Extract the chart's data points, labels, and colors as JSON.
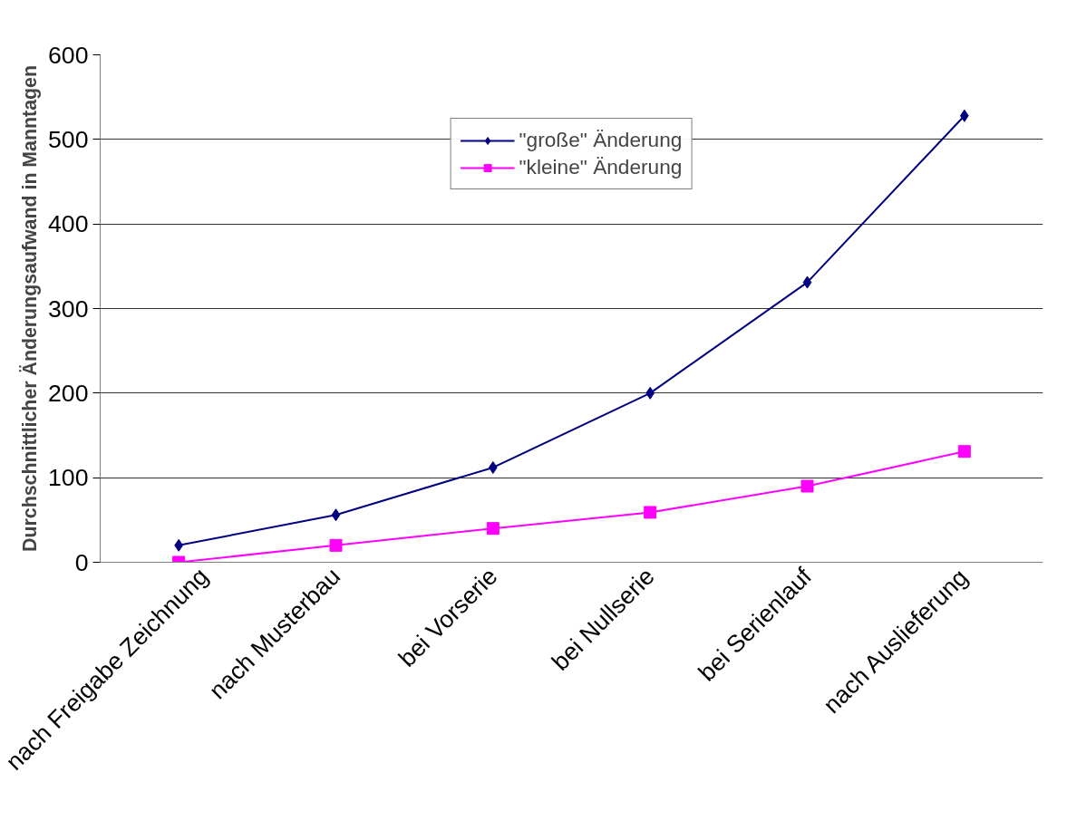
{
  "chart_data": {
    "type": "line",
    "ylabel": "Durchschnittlicher Änderungsaufwand in Manntagen",
    "categories": [
      "nach Freigabe Zeichnung",
      "nach Musterbau",
      "bei Vorserie",
      "bei Nullserie",
      "bei Serienlauf",
      "nach Auslieferung"
    ],
    "series": [
      {
        "name": "\"große\" Änderung",
        "color": "#000080",
        "marker": "diamond",
        "values": [
          20,
          56,
          112,
          200,
          331,
          528
        ]
      },
      {
        "name": "\"kleine\" Änderung",
        "color": "#ff00ff",
        "marker": "square",
        "values": [
          0,
          20,
          40,
          59,
          90,
          131
        ]
      }
    ],
    "ylim": [
      0,
      600
    ],
    "yticks": [
      0,
      100,
      200,
      300,
      400,
      500,
      600
    ],
    "grid": "y",
    "legend": "top",
    "line_style": "solid"
  }
}
